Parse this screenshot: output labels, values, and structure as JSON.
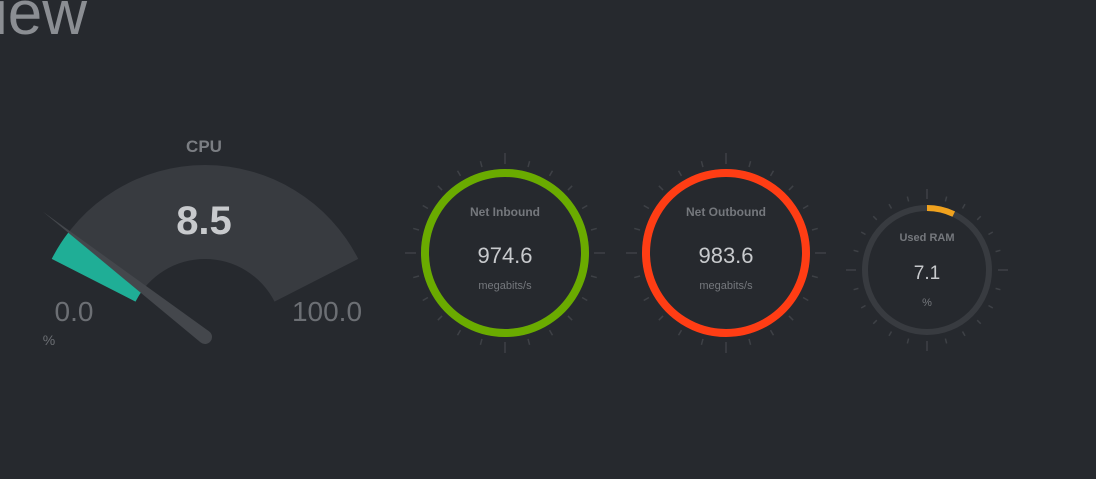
{
  "page": {
    "heading": "iew"
  },
  "colors": {
    "background": "#26292e",
    "track": "#383b40",
    "tick": "#3c3f44",
    "text": "#c8cacd",
    "muted": "#75787d"
  },
  "cpu": {
    "title": "CPU",
    "value": 8.5,
    "value_label": "8.5",
    "min_label": "0.0",
    "max_label": "100.0",
    "unit": "%",
    "min": 0,
    "max": 100,
    "color": "#1fae96"
  },
  "net_inbound": {
    "title": "Net Inbound",
    "value_label": "974.6",
    "unit": "megabits/s",
    "fraction": 1.0,
    "color": "#6aab00"
  },
  "net_outbound": {
    "title": "Net Outbound",
    "value_label": "983.6",
    "unit": "megabits/s",
    "fraction": 1.0,
    "color": "#ff3d14"
  },
  "ram": {
    "title": "Used RAM",
    "value_label": "7.1",
    "unit": "%",
    "fraction": 0.071,
    "color": "#f0a21e"
  }
}
